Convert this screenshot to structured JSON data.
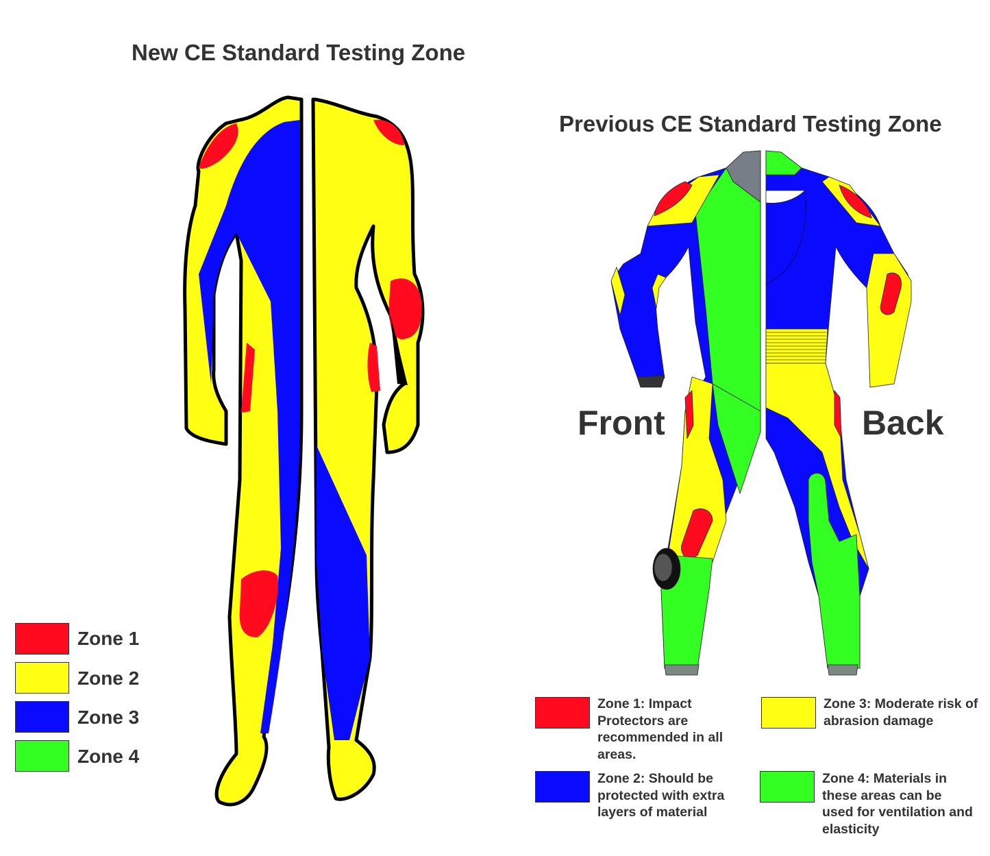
{
  "colors": {
    "zone_red": "#ff0a1f",
    "zone_yellow": "#ffff14",
    "zone_blue": "#0a0aff",
    "zone_green": "#33ff22",
    "text": "#333333"
  },
  "new_standard": {
    "title": "New CE Standard Testing Zone",
    "legend": [
      {
        "label": "Zone 1",
        "color": "#ff0a1f"
      },
      {
        "label": "Zone 2",
        "color": "#ffff14"
      },
      {
        "label": "Zone 3",
        "color": "#0a0aff"
      },
      {
        "label": "Zone 4",
        "color": "#33ff22"
      }
    ]
  },
  "previous_standard": {
    "title": "Previous CE Standard Testing Zone",
    "front_label": "Front",
    "back_label": "Back",
    "legend": [
      {
        "text": "Zone 1: Impact Protectors are recommended in all areas.",
        "color": "#ff0a1f"
      },
      {
        "text": "Zone 3: Moderate risk of abrasion damage",
        "color": "#ffff14"
      },
      {
        "text": "Zone 2: Should be protected with extra layers of material",
        "color": "#0a0aff"
      },
      {
        "text": "Zone 4: Materials in these areas can be used for ventilation and elasticity",
        "color": "#33ff22"
      }
    ]
  }
}
